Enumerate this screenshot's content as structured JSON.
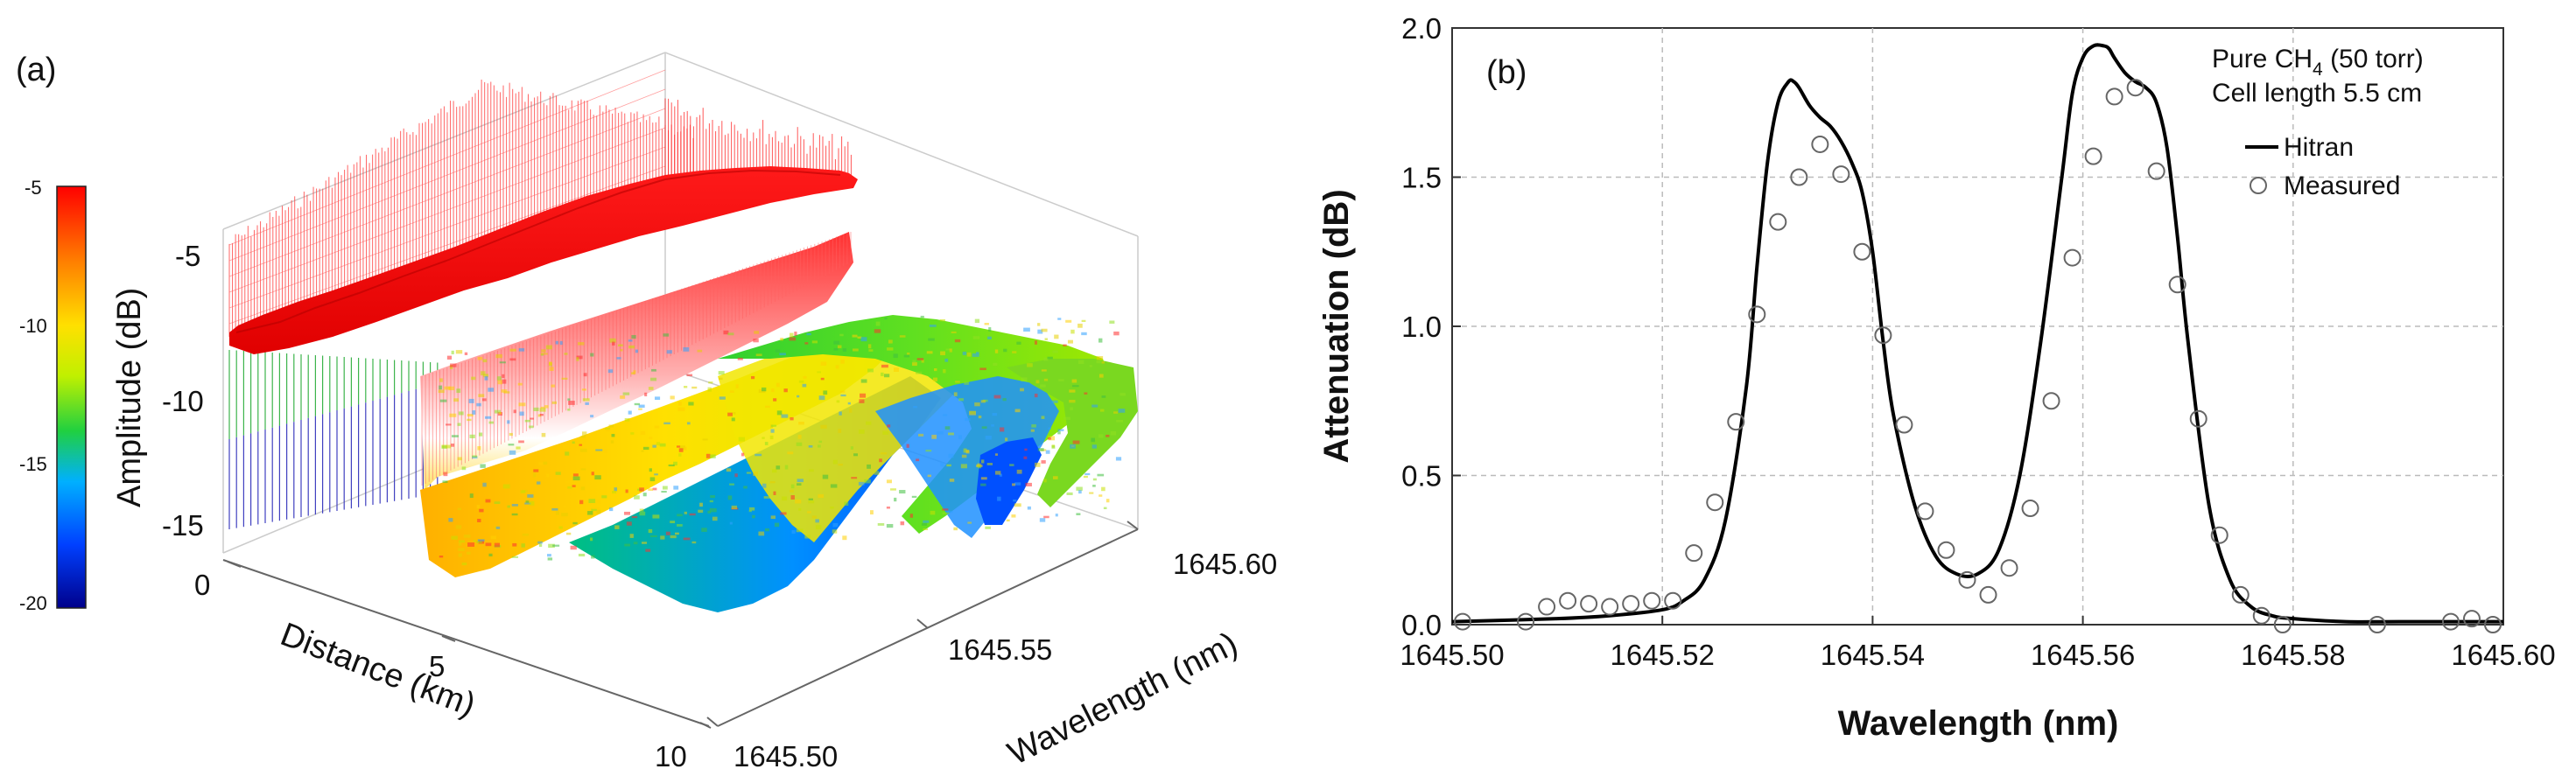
{
  "chart_data": [
    {
      "type": "surface3d",
      "panel_label": "(a)",
      "colorbar": {
        "label": "Amplitude (dB)",
        "ticks": [
          "-5",
          "-10",
          "-15",
          "-20"
        ],
        "range": [
          -20,
          -5
        ],
        "colors": [
          "#00008b",
          "#0050ff",
          "#00c0ff",
          "#20d040",
          "#c8f000",
          "#ffe000",
          "#ff8000",
          "#ff0000"
        ]
      },
      "z_axis": {
        "ticks": [
          "-5",
          "-10",
          "-15"
        ]
      },
      "distance_axis": {
        "label": "Distance (km)",
        "ticks": [
          "0",
          "5",
          "10"
        ],
        "range": [
          0,
          10
        ]
      },
      "wavelength_axis": {
        "label": "Wavelength (nm)",
        "ticks": [
          "1645.50",
          "1645.55",
          "1645.60"
        ],
        "range": [
          1645.5,
          1645.6
        ]
      },
      "description_levels": {
        "near_distance_amplitude_dB": -5,
        "far_distance_amplitude_dB": -11,
        "absorption_dips_nm": [
          1645.533,
          1645.563
        ]
      }
    },
    {
      "type": "line+scatter",
      "panel_label": "(b)",
      "annotation": {
        "line1_prefix": "Pure CH",
        "line1_sub": "4",
        "line1_suffix": " (50 torr)",
        "line2": "Cell length 5.5 cm"
      },
      "xlabel": "Wavelength (nm)",
      "ylabel": "Attenuation (dB)",
      "xlim": [
        1645.5,
        1645.6
      ],
      "ylim": [
        0.0,
        2.0
      ],
      "xticks": [
        1645.5,
        1645.52,
        1645.54,
        1645.56,
        1645.58,
        1645.6
      ],
      "xtick_labels": [
        "1645.50",
        "1645.52",
        "1645.54",
        "1645.56",
        "1645.58",
        "1645.60"
      ],
      "yticks": [
        0.0,
        0.5,
        1.0,
        1.5,
        2.0
      ],
      "ytick_labels": [
        "0.0",
        "0.5",
        "1.0",
        "1.5",
        "2.0"
      ],
      "grid": true,
      "legend": {
        "position": "top-right",
        "entries": [
          "Hitran",
          "Measured"
        ]
      },
      "series": [
        {
          "name": "Hitran",
          "style": "line",
          "x": [
            1645.5,
            1645.51,
            1645.515,
            1645.52,
            1645.522,
            1645.524,
            1645.526,
            1645.528,
            1645.529,
            1645.53,
            1645.531,
            1645.532,
            1645.5325,
            1645.533,
            1645.534,
            1645.535,
            1645.536,
            1645.537,
            1645.538,
            1645.539,
            1645.54,
            1645.541,
            1645.542,
            1645.544,
            1645.546,
            1645.548,
            1645.55,
            1645.552,
            1645.554,
            1645.556,
            1645.558,
            1645.559,
            1645.56,
            1645.561,
            1645.562,
            1645.5625,
            1645.563,
            1645.564,
            1645.565,
            1645.566,
            1645.567,
            1645.568,
            1645.569,
            1645.57,
            1645.572,
            1645.574,
            1645.576,
            1645.578,
            1645.58,
            1645.585,
            1645.59,
            1645.6
          ],
          "y": [
            0.01,
            0.02,
            0.03,
            0.05,
            0.08,
            0.15,
            0.35,
            0.8,
            1.2,
            1.55,
            1.75,
            1.82,
            1.82,
            1.8,
            1.74,
            1.7,
            1.67,
            1.62,
            1.55,
            1.45,
            1.25,
            0.95,
            0.7,
            0.4,
            0.23,
            0.17,
            0.17,
            0.25,
            0.5,
            0.95,
            1.5,
            1.78,
            1.9,
            1.94,
            1.94,
            1.93,
            1.9,
            1.85,
            1.82,
            1.8,
            1.75,
            1.6,
            1.3,
            0.95,
            0.4,
            0.15,
            0.06,
            0.03,
            0.02,
            0.01,
            0.01,
            0.01
          ]
        },
        {
          "name": "Measured",
          "style": "markers",
          "x": [
            1645.501,
            1645.507,
            1645.509,
            1645.511,
            1645.513,
            1645.515,
            1645.517,
            1645.519,
            1645.521,
            1645.523,
            1645.525,
            1645.527,
            1645.529,
            1645.531,
            1645.533,
            1645.535,
            1645.537,
            1645.539,
            1645.541,
            1645.543,
            1645.545,
            1645.547,
            1645.549,
            1645.551,
            1645.553,
            1645.555,
            1645.557,
            1645.559,
            1645.561,
            1645.563,
            1645.565,
            1645.567,
            1645.569,
            1645.571,
            1645.573,
            1645.575,
            1645.577,
            1645.579,
            1645.588,
            1645.595,
            1645.597,
            1645.599
          ],
          "y": [
            0.01,
            0.01,
            0.06,
            0.08,
            0.07,
            0.06,
            0.07,
            0.08,
            0.08,
            0.24,
            0.41,
            0.68,
            1.04,
            1.35,
            1.5,
            1.61,
            1.51,
            1.25,
            0.97,
            0.67,
            0.38,
            0.25,
            0.15,
            0.1,
            0.19,
            0.39,
            0.75,
            1.23,
            1.57,
            1.77,
            1.8,
            1.52,
            1.14,
            0.69,
            0.3,
            0.1,
            0.03,
            0.0,
            0.0,
            0.01,
            0.02,
            0.0
          ]
        }
      ]
    }
  ]
}
